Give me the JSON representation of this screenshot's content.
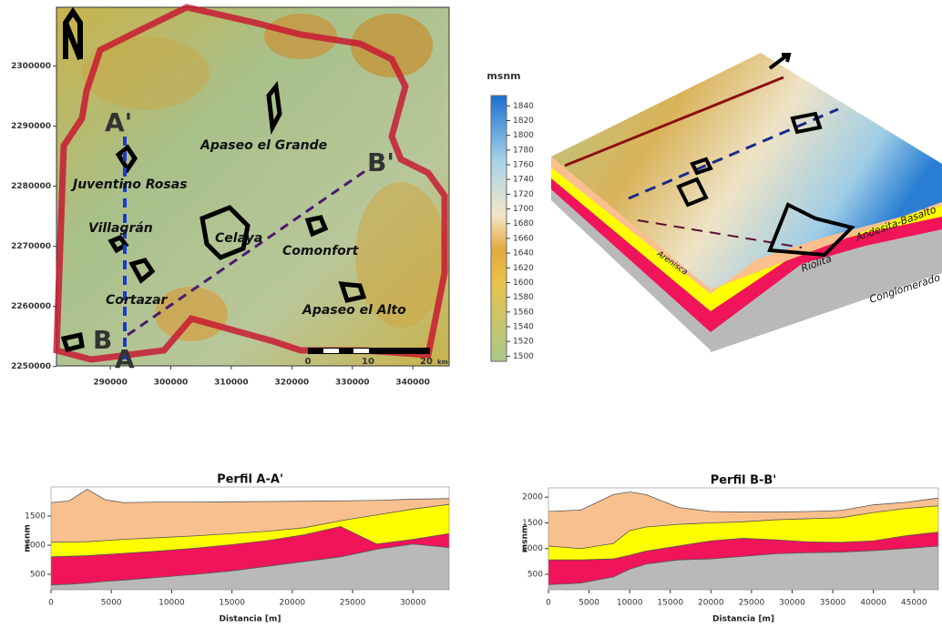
{
  "map": {
    "xlim": [
      281100,
      346000
    ],
    "ylim": [
      2250100,
      2309800
    ],
    "xticks": [
      290000,
      300000,
      310000,
      320000,
      330000,
      340000
    ],
    "yticks": [
      2250000,
      2260000,
      2270000,
      2280000,
      2290000,
      2300000
    ],
    "places": [
      "Juventino Rosas",
      "Villagrán",
      "Celaya",
      "Comonfort",
      "Cortazar",
      "Apaseo el Grande",
      "Apaseo el Alto"
    ],
    "section_labels": [
      "A'",
      "A",
      "B",
      "B'"
    ],
    "scale_labels": [
      "0",
      "10",
      "20"
    ],
    "scale_unit": "km"
  },
  "colorbar": {
    "title": "msnm",
    "lim": [
      1493,
      1854
    ],
    "ticks": [
      1500,
      1520,
      1540,
      1560,
      1580,
      1600,
      1620,
      1640,
      1660,
      1680,
      1700,
      1720,
      1740,
      1760,
      1780,
      1800,
      1820,
      1840
    ]
  },
  "block": {
    "labels": [
      "Andesita-Basalto",
      "Riolita",
      "Conglomerado",
      "Arenisca"
    ]
  },
  "profiles": [
    {
      "title": "Perfil A-A'",
      "xlabel": "Distancia [m]",
      "ylabel": "msnm",
      "xlim": [
        0,
        33000
      ],
      "ylim": [
        235,
        2000
      ],
      "xticks": [
        0,
        5000,
        10000,
        15000,
        20000,
        25000,
        30000
      ],
      "yticks": [
        500,
        1000,
        1500
      ],
      "colors": [
        "#f9c08f",
        "#ffff00",
        "#f0145a",
        "#b9b9b9"
      ],
      "x": [
        0,
        1500,
        3000,
        4500,
        6000,
        9000,
        12000,
        15000,
        18000,
        21000,
        24000,
        27000,
        30000,
        33000
      ],
      "surfaces": [
        [
          1730,
          1760,
          1960,
          1780,
          1730,
          1740,
          1740,
          1745,
          1750,
          1755,
          1760,
          1770,
          1790,
          1800
        ],
        [
          1050,
          1055,
          1060,
          1080,
          1100,
          1130,
          1160,
          1200,
          1240,
          1300,
          1420,
          1520,
          1620,
          1700
        ],
        [
          800,
          810,
          820,
          840,
          860,
          900,
          950,
          1010,
          1080,
          1180,
          1320,
          1020,
          1100,
          1200
        ],
        [
          320,
          330,
          350,
          380,
          400,
          450,
          500,
          560,
          640,
          720,
          800,
          930,
          1020,
          960
        ]
      ]
    },
    {
      "title": "Perfil B-B'",
      "xlabel": "Distancia [m]",
      "ylabel": "msnm",
      "xlim": [
        0,
        48000
      ],
      "ylim": [
        200,
        2180
      ],
      "xticks": [
        0,
        5000,
        10000,
        15000,
        20000,
        25000,
        30000,
        35000,
        40000,
        45000
      ],
      "yticks": [
        500,
        1000,
        1500,
        2000
      ],
      "colors": [
        "#f9c08f",
        "#ffff00",
        "#f0145a",
        "#b9b9b9"
      ],
      "x": [
        0,
        4000,
        8000,
        10000,
        12000,
        16000,
        20000,
        24000,
        28000,
        32000,
        36000,
        40000,
        44000,
        48000
      ],
      "surfaces": [
        [
          1720,
          1750,
          2050,
          2100,
          2050,
          1800,
          1720,
          1710,
          1710,
          1720,
          1740,
          1850,
          1900,
          1980
        ],
        [
          1050,
          1000,
          1100,
          1350,
          1420,
          1470,
          1500,
          1520,
          1560,
          1580,
          1600,
          1700,
          1780,
          1830
        ],
        [
          780,
          780,
          800,
          870,
          950,
          1050,
          1150,
          1200,
          1170,
          1130,
          1120,
          1150,
          1250,
          1320
        ],
        [
          300,
          330,
          450,
          600,
          700,
          780,
          800,
          850,
          900,
          920,
          930,
          960,
          1000,
          1050
        ]
      ]
    }
  ]
}
